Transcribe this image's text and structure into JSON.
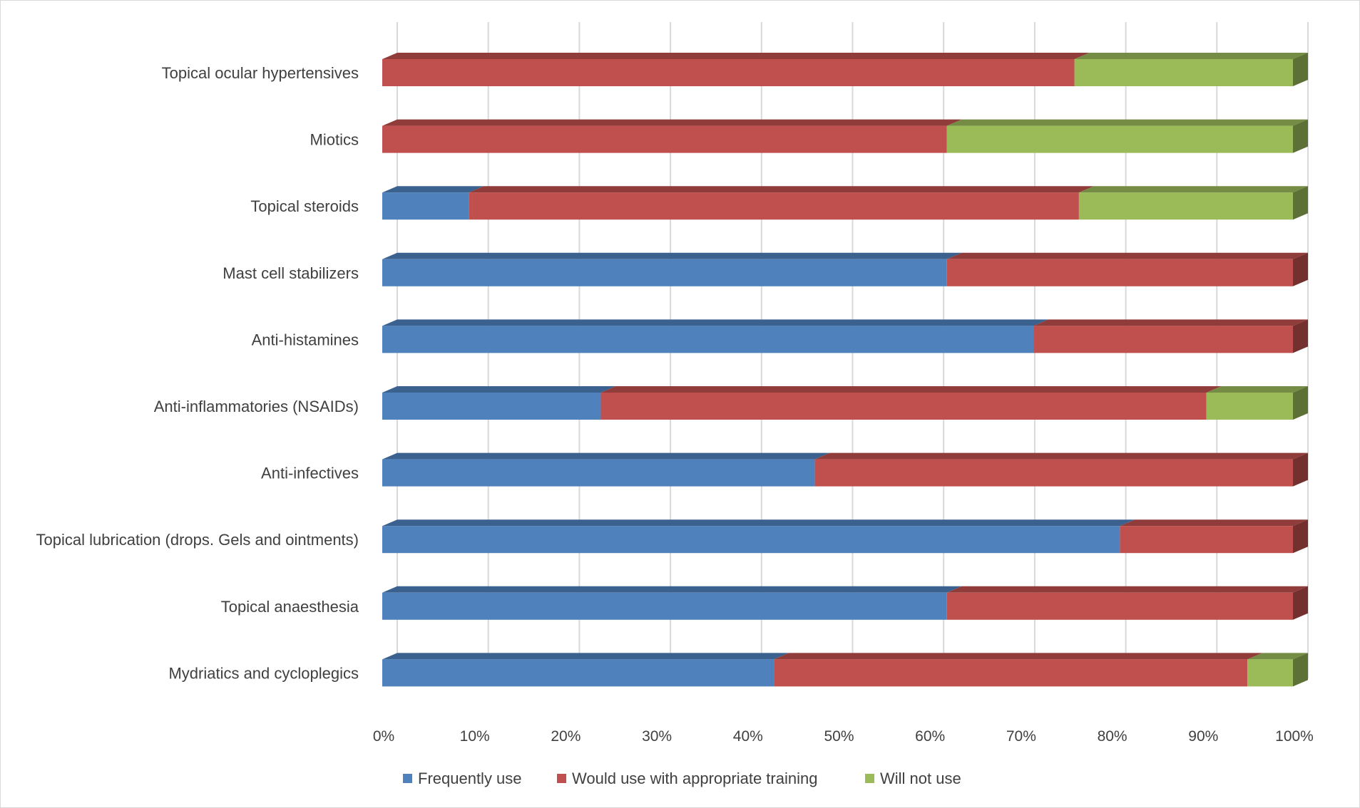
{
  "chart_data": {
    "type": "bar",
    "orientation": "horizontal",
    "stacked": "percent",
    "title": "",
    "xlabel": "",
    "ylabel": "",
    "xlim": [
      0,
      100
    ],
    "x_ticks": [
      "0%",
      "10%",
      "20%",
      "30%",
      "40%",
      "50%",
      "60%",
      "70%",
      "80%",
      "90%",
      "100%"
    ],
    "grid": true,
    "legend_position": "bottom",
    "categories": [
      "Topical ocular hypertensives",
      "Miotics",
      "Topical steroids",
      "Mast cell stabilizers",
      "Anti-histamines",
      "Anti-inflammatories (NSAIDs)",
      "Anti-infectives",
      "Topical lubrication (drops. Gels and ointments)",
      "Topical anaesthesia",
      "Mydriatics and cycloplegics"
    ],
    "series": [
      {
        "name": "Frequently use",
        "color": "#4f81bd",
        "values": [
          0,
          0,
          9.5,
          62,
          71.5,
          24,
          47.5,
          81,
          62,
          43
        ]
      },
      {
        "name": "Would use with appropriate training",
        "color": "#c0504d",
        "values": [
          76,
          62,
          67,
          38,
          28.5,
          66.5,
          52.5,
          19,
          38,
          52
        ]
      },
      {
        "name": "Will not use",
        "color": "#9bbb59",
        "values": [
          24,
          38,
          23.5,
          0,
          0,
          9.5,
          0,
          0,
          0,
          5
        ]
      }
    ]
  }
}
